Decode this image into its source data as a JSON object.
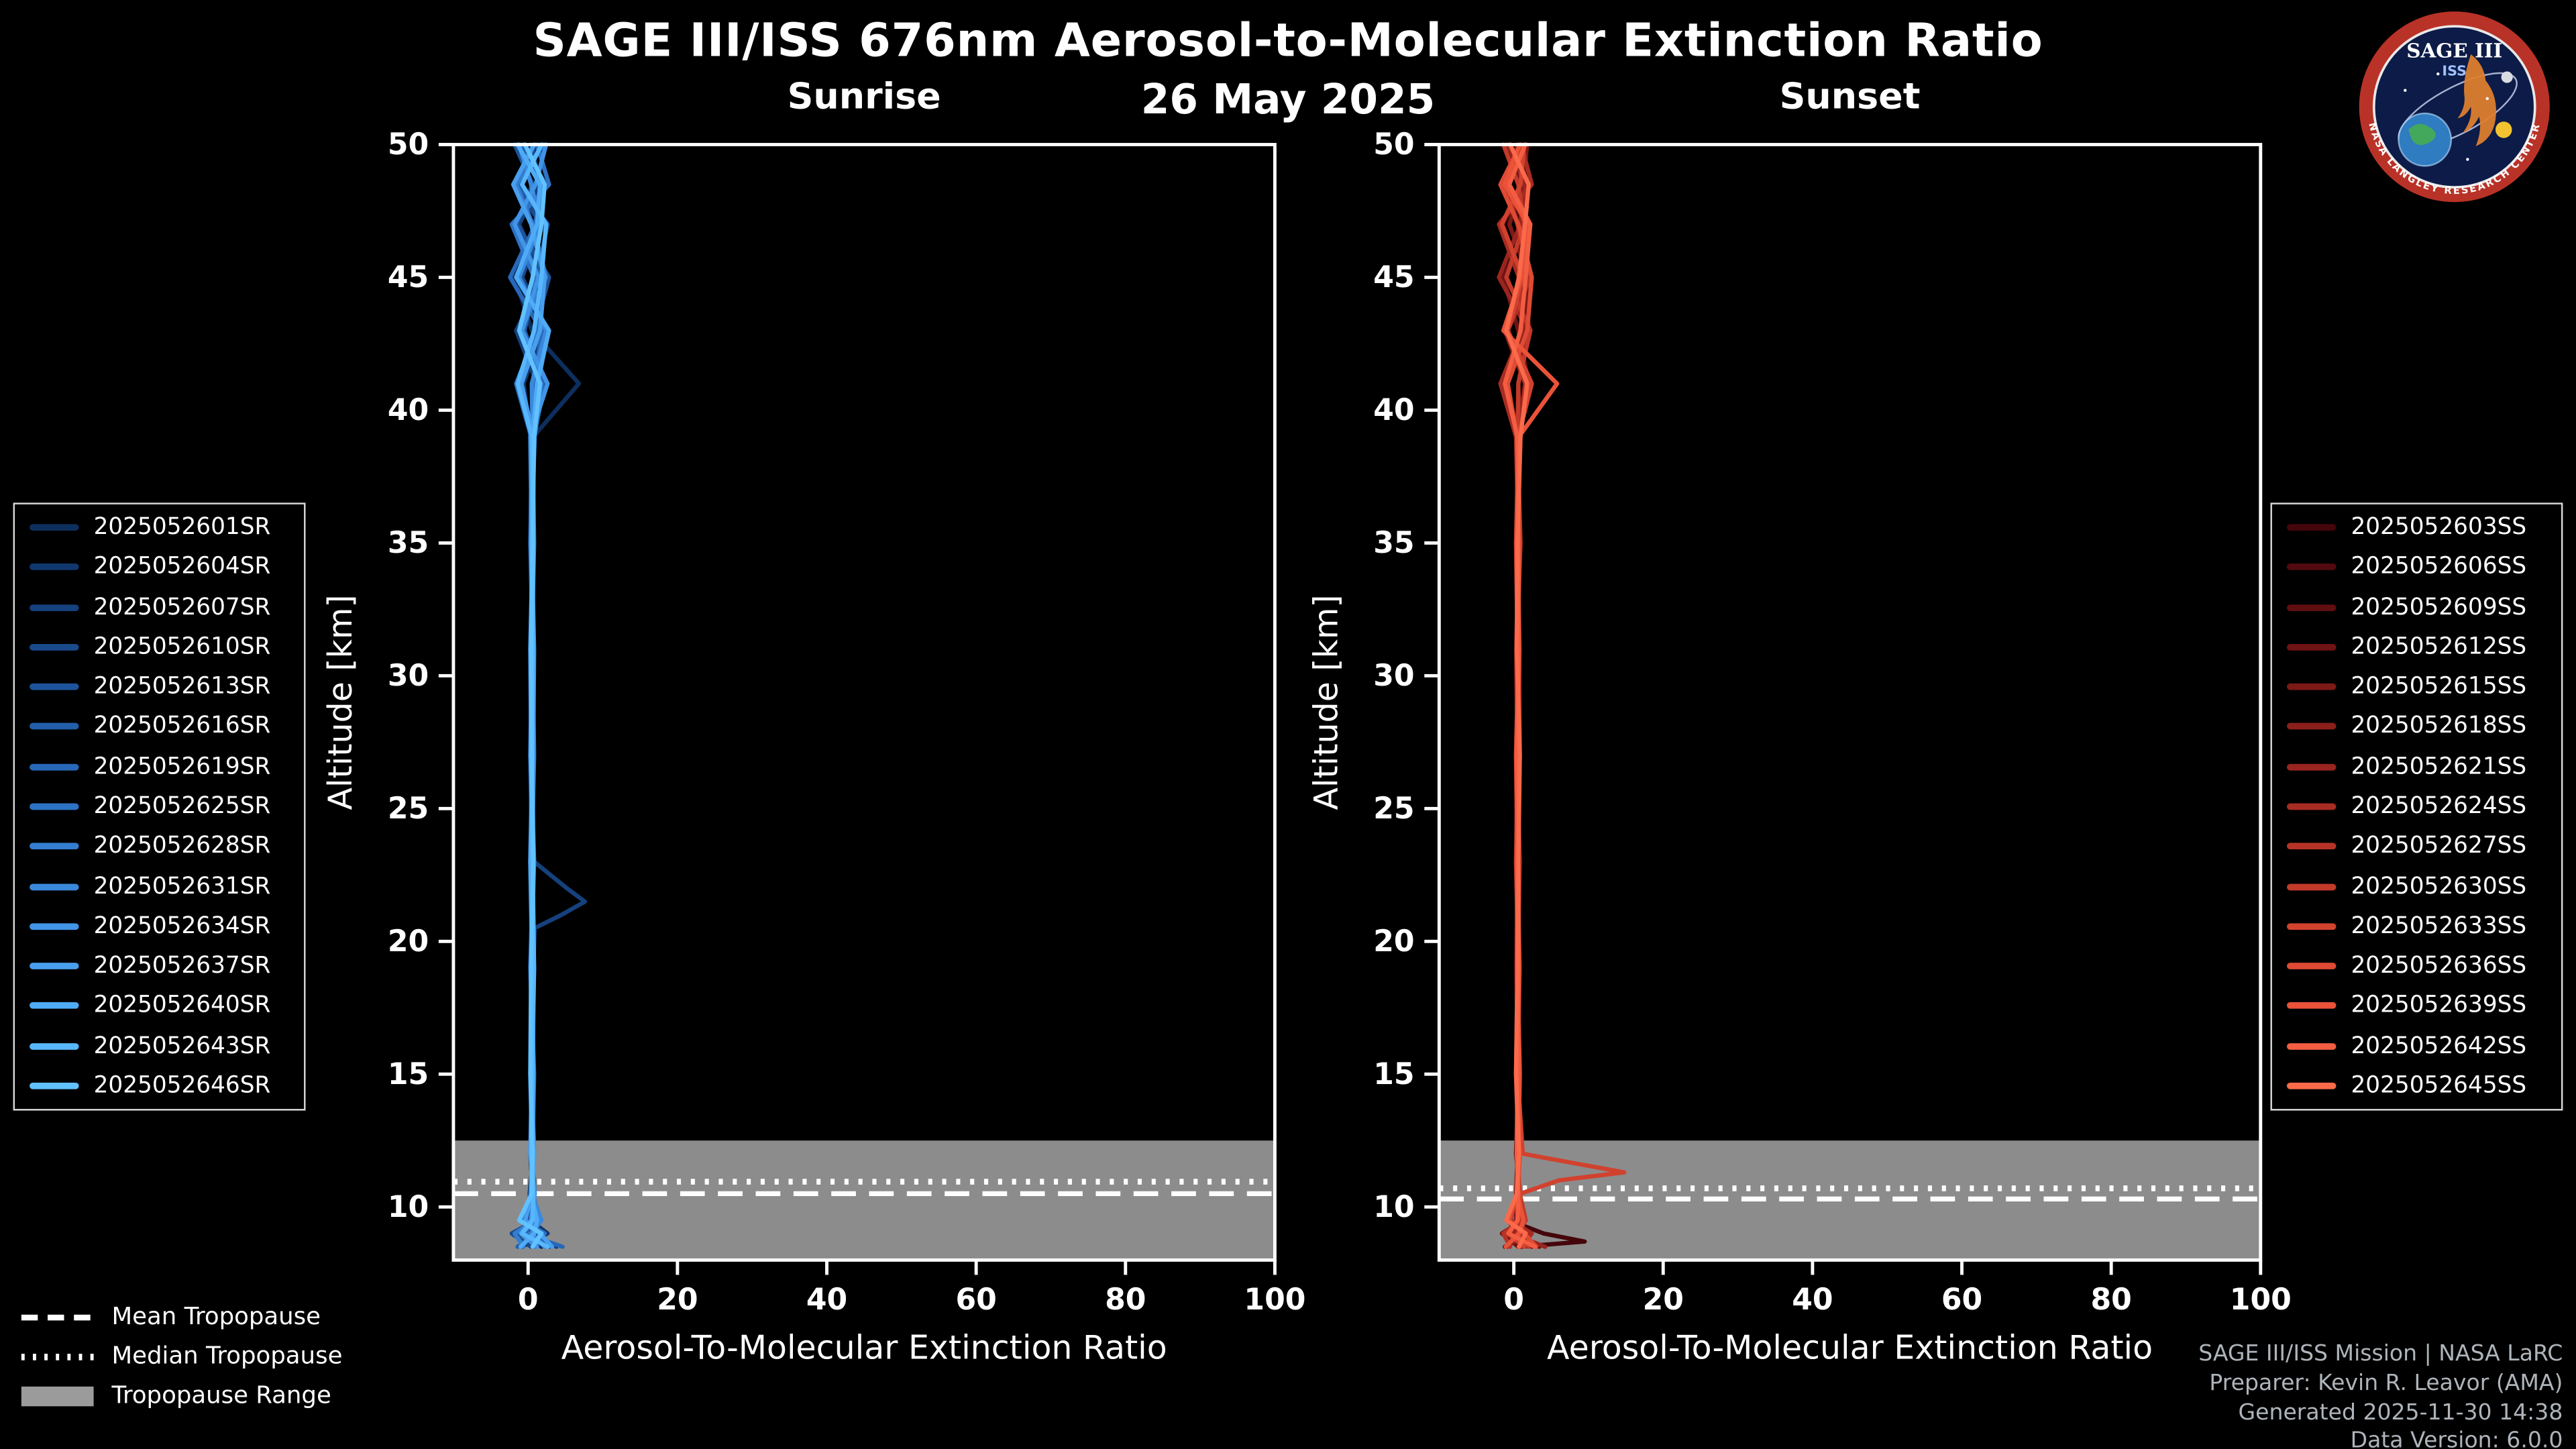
{
  "title": "SAGE III/ISS 676nm Aerosol-to-Molecular Extinction Ratio",
  "date": "26 May 2025",
  "logo": {
    "title": "SAGE III",
    "subtitle": "ISS",
    "ring_text": "NASA LANGLEY RESEARCH CENTER"
  },
  "footer": {
    "lines": [
      "SAGE III/ISS Mission | NASA LaRC",
      "Preparer: Kevin R. Leavor (AMA)",
      "Generated 2025-11-30 14:38",
      "Data Version: 6.0.0"
    ]
  },
  "tropopause_legend": [
    {
      "label": "Mean Tropopause",
      "style": "dashed"
    },
    {
      "label": "Median Tropopause",
      "style": "dotted"
    },
    {
      "label": "Tropopause Range",
      "style": "band"
    }
  ],
  "chart_data": [
    {
      "type": "line",
      "title": "Sunrise",
      "xlabel": "Aerosol-To-Molecular Extinction Ratio",
      "ylabel": "Altitude [km]",
      "xlim": [
        -10,
        100
      ],
      "ylim": [
        8,
        50
      ],
      "xticks": [
        0,
        20,
        40,
        60,
        80,
        100
      ],
      "yticks": [
        10,
        15,
        20,
        25,
        30,
        35,
        40,
        45,
        50
      ],
      "tropopause": {
        "mean": 10.5,
        "median": 10.95,
        "range": [
          8,
          12.5
        ]
      },
      "default_altitudes": [
        8.5,
        9,
        9.5,
        10.5,
        12,
        15,
        19,
        23,
        27,
        31,
        35,
        39,
        41,
        43,
        45,
        47,
        48.5,
        50
      ],
      "series": [
        {
          "label": "2025052601SR",
          "color": "#0d2f5e",
          "values": [
            1.8,
            -1.2,
            0.6,
            0.2,
            0.7,
            0.4,
            0.6,
            0.3,
            0.5,
            0.6,
            0.4,
            0.7,
            6.8,
            0.5,
            -1.8,
            2.2,
            -1.0,
            1.5
          ]
        },
        {
          "label": "2025052604SR",
          "color": "#11386e",
          "values": [
            -0.8,
            2.6,
            0.3,
            0.8,
            0.4,
            0.6,
            0.3,
            0.7,
            0.4,
            0.5,
            0.7,
            0.3,
            -0.6,
            1.9,
            -1.4,
            0.8,
            2.4,
            -0.9
          ]
        },
        {
          "label": "2025052607SR",
          "color": "#15417d",
          "points": [
            [
              8.5,
              3.8
            ],
            [
              9,
              0.6
            ],
            [
              9.5,
              -0.9
            ],
            [
              10.5,
              0.5
            ],
            [
              12,
              0.6
            ],
            [
              15,
              0.4
            ],
            [
              19,
              0.7
            ],
            [
              20.5,
              0.9
            ],
            [
              21,
              4.5
            ],
            [
              21.5,
              7.6
            ],
            [
              22,
              5.2
            ],
            [
              23,
              0.8
            ],
            [
              27,
              0.5
            ],
            [
              31,
              0.6
            ],
            [
              35,
              0.4
            ],
            [
              39,
              0.6
            ],
            [
              41,
              1.2
            ],
            [
              43,
              -1.6
            ],
            [
              45,
              2.0
            ],
            [
              47,
              -1.2
            ],
            [
              48.5,
              1.6
            ],
            [
              50,
              0.4
            ]
          ]
        },
        {
          "label": "2025052610SR",
          "color": "#194a8c",
          "values": [
            0.4,
            -2.2,
            1.0,
            0.6,
            0.3,
            0.7,
            0.5,
            0.3,
            0.6,
            0.4,
            0.6,
            0.5,
            1.4,
            2.6,
            -0.8,
            1.8,
            -2.0,
            2.2
          ]
        },
        {
          "label": "2025052613SR",
          "color": "#1d549b",
          "values": [
            2.9,
            0.8,
            0.2,
            0.9,
            0.5,
            0.3,
            0.6,
            0.5,
            0.3,
            0.7,
            0.5,
            0.6,
            -1.2,
            0.9,
            2.8,
            -1.5,
            0.6,
            -1.8
          ]
        },
        {
          "label": "2025052616SR",
          "color": "#225eaa",
          "values": [
            -1.4,
            1.2,
            0.7,
            0.3,
            0.8,
            0.5,
            0.4,
            0.6,
            0.7,
            0.3,
            0.6,
            0.8,
            2.2,
            -0.5,
            1.2,
            2.6,
            -1.4,
            0.9
          ]
        },
        {
          "label": "2025052619SR",
          "color": "#2768b8",
          "values": [
            4.6,
            -0.6,
            1.4,
            0.7,
            0.4,
            0.6,
            0.8,
            0.4,
            0.5,
            0.6,
            0.3,
            0.5,
            0.9,
            1.8,
            -2.4,
            1.0,
            1.8,
            -0.6
          ]
        },
        {
          "label": "2025052625SR",
          "color": "#2d73c5",
          "values": [
            0.8,
            2.2,
            -0.7,
            0.4,
            0.6,
            0.8,
            0.3,
            0.7,
            0.6,
            0.5,
            0.7,
            0.4,
            -1.6,
            1.2,
            0.8,
            -2.2,
            2.8,
            1.2
          ]
        },
        {
          "label": "2025052628SR",
          "color": "#337ed1",
          "values": [
            -0.6,
            -1.8,
            0.9,
            0.8,
            0.5,
            0.4,
            0.7,
            0.5,
            0.8,
            0.6,
            0.4,
            0.9,
            1.8,
            -1.0,
            2.4,
            0.6,
            -1.6,
            2.0
          ]
        },
        {
          "label": "2025052631SR",
          "color": "#3a89dc",
          "values": [
            2.2,
            0.4,
            1.8,
            0.5,
            0.7,
            0.6,
            0.4,
            0.8,
            0.3,
            0.5,
            0.8,
            0.6,
            0.5,
            2.4,
            -1.2,
            1.6,
            0.4,
            -1.2
          ]
        },
        {
          "label": "2025052634SR",
          "color": "#4194e6",
          "values": [
            1.2,
            -1.0,
            0.4,
            0.9,
            0.3,
            0.5,
            0.6,
            0.4,
            0.7,
            0.8,
            0.5,
            0.3,
            2.6,
            -0.8,
            1.4,
            -1.8,
            1.0,
            2.4
          ]
        },
        {
          "label": "2025052637SR",
          "color": "#489fee",
          "values": [
            3.2,
            1.6,
            -0.4,
            0.6,
            0.8,
            0.4,
            0.5,
            0.6,
            0.4,
            0.3,
            0.6,
            0.7,
            -0.9,
            1.6,
            2.2,
            0.4,
            -2.0,
            0.8
          ]
        },
        {
          "label": "2025052640SR",
          "color": "#50abf6",
          "values": [
            -1.0,
            0.8,
            1.2,
            0.4,
            0.5,
            0.7,
            0.6,
            0.3,
            0.6,
            0.7,
            0.4,
            0.6,
            1.2,
            2.8,
            -1.6,
            1.2,
            1.6,
            -1.4
          ]
        },
        {
          "label": "2025052643SR",
          "color": "#58b7fc",
          "values": [
            2.6,
            -0.8,
            0.6,
            0.7,
            0.4,
            0.5,
            0.8,
            0.6,
            0.4,
            0.6,
            0.7,
            0.5,
            -1.4,
            0.8,
            1.8,
            2.4,
            -0.8,
            1.8
          ]
        },
        {
          "label": "2025052646SR",
          "color": "#61c2ff",
          "values": [
            0.6,
            1.8,
            -1.2,
            0.5,
            0.6,
            0.3,
            0.4,
            0.7,
            0.5,
            0.4,
            0.6,
            0.8,
            1.6,
            -1.2,
            0.6,
            1.8,
            2.2,
            -0.4
          ]
        }
      ]
    },
    {
      "type": "line",
      "title": "Sunset",
      "xlabel": "Aerosol-To-Molecular Extinction Ratio",
      "ylabel": "Altitude [km]",
      "xlim": [
        -10,
        100
      ],
      "ylim": [
        8,
        50
      ],
      "xticks": [
        0,
        20,
        40,
        60,
        80,
        100
      ],
      "yticks": [
        10,
        15,
        20,
        25,
        30,
        35,
        40,
        45,
        50
      ],
      "tropopause": {
        "mean": 10.3,
        "median": 10.7,
        "range": [
          8,
          12.5
        ]
      },
      "default_altitudes": [
        8.5,
        9,
        9.5,
        10.5,
        12,
        15,
        19,
        23,
        27,
        31,
        35,
        39,
        41,
        43,
        45,
        47,
        48.5,
        50
      ],
      "series": [
        {
          "label": "2025052603SS",
          "color": "#45060b",
          "points": [
            [
              8.5,
              0.8
            ],
            [
              8.7,
              9.5
            ],
            [
              9,
              4.0
            ],
            [
              9.5,
              -0.6
            ],
            [
              10.5,
              0.5
            ],
            [
              12,
              0.6
            ],
            [
              15,
              0.4
            ],
            [
              19,
              0.7
            ],
            [
              23,
              0.5
            ],
            [
              27,
              0.3
            ],
            [
              31,
              0.6
            ],
            [
              35,
              0.5
            ],
            [
              39,
              0.7
            ],
            [
              41,
              -1.2
            ],
            [
              43,
              1.6
            ],
            [
              45,
              0.8
            ],
            [
              47,
              -1.4
            ],
            [
              48.5,
              1.2
            ],
            [
              50,
              0.4
            ]
          ]
        },
        {
          "label": "2025052606SS",
          "color": "#530a0e",
          "values": [
            -1.2,
            2.0,
            0.5,
            0.7,
            0.4,
            0.6,
            0.3,
            0.5,
            0.7,
            0.4,
            0.6,
            0.4,
            1.8,
            -0.9,
            1.2,
            -1.6,
            2.0,
            0.6
          ]
        },
        {
          "label": "2025052609SS",
          "color": "#610e11",
          "values": [
            3.4,
            0.6,
            -0.8,
            0.4,
            0.7,
            0.5,
            0.6,
            0.4,
            0.3,
            0.6,
            0.5,
            0.7,
            -1.0,
            2.2,
            0.6,
            1.4,
            -1.8,
            1.0
          ]
        },
        {
          "label": "2025052612SS",
          "color": "#6f1314",
          "values": [
            0.6,
            -1.6,
            1.2,
            0.8,
            0.3,
            0.6,
            0.5,
            0.7,
            0.4,
            0.5,
            0.8,
            0.4,
            2.0,
            0.6,
            -1.4,
            1.8,
            0.8,
            -1.0
          ]
        },
        {
          "label": "2025052615SS",
          "color": "#7d1917",
          "values": [
            2.4,
            0.9,
            0.3,
            0.5,
            0.8,
            0.4,
            0.7,
            0.3,
            0.6,
            0.8,
            0.4,
            0.6,
            -1.3,
            1.4,
            2.0,
            -0.6,
            1.2,
            1.8
          ]
        },
        {
          "label": "2025052618SS",
          "color": "#8b1f1a",
          "values": [
            -0.9,
            1.5,
            0.8,
            0.3,
            0.5,
            0.7,
            0.4,
            0.6,
            0.5,
            0.3,
            0.7,
            0.5,
            1.5,
            -1.2,
            0.8,
            2.2,
            -1.0,
            0.5
          ]
        },
        {
          "label": "2025052621SS",
          "color": "#99251e",
          "values": [
            4.2,
            -0.4,
            1.6,
            0.6,
            0.4,
            0.5,
            0.8,
            0.4,
            0.7,
            0.6,
            0.3,
            0.8,
            0.6,
            1.9,
            -2.0,
            0.9,
            1.5,
            -0.8
          ]
        },
        {
          "label": "2025052624SS",
          "color": "#a72c22",
          "values": [
            0.9,
            2.4,
            -0.5,
            0.7,
            0.6,
            0.3,
            0.5,
            0.8,
            0.4,
            0.5,
            0.6,
            0.3,
            -1.8,
            1.1,
            0.7,
            -2.0,
            2.4,
            1.0
          ]
        },
        {
          "label": "2025052627SS",
          "color": "#b53326",
          "values": [
            -0.5,
            -1.4,
            1.0,
            0.5,
            0.7,
            0.6,
            0.4,
            0.5,
            0.8,
            0.7,
            0.5,
            0.9,
            1.6,
            -0.8,
            2.2,
            0.5,
            -1.2,
            1.6
          ]
        },
        {
          "label": "2025052630SS",
          "color": "#c33a2a",
          "values": [
            2.0,
            0.5,
            1.6,
            0.8,
            0.4,
            0.7,
            0.6,
            0.3,
            0.5,
            0.4,
            0.9,
            0.5,
            0.6,
            2.2,
            -1.0,
            1.4,
            0.6,
            -1.4
          ]
        },
        {
          "label": "2025052633SS",
          "color": "#d1422e",
          "points": [
            [
              8.5,
              1.4
            ],
            [
              9,
              -0.8
            ],
            [
              9.5,
              0.6
            ],
            [
              10.5,
              0.9
            ],
            [
              11,
              6.0
            ],
            [
              11.3,
              14.8
            ],
            [
              11.6,
              9.0
            ],
            [
              12,
              1.2
            ],
            [
              15,
              0.5
            ],
            [
              19,
              0.6
            ],
            [
              23,
              0.4
            ],
            [
              27,
              0.7
            ],
            [
              31,
              0.5
            ],
            [
              35,
              0.3
            ],
            [
              39,
              0.6
            ],
            [
              41,
              2.4
            ],
            [
              43,
              -0.8
            ],
            [
              45,
              1.2
            ],
            [
              47,
              -1.6
            ],
            [
              48.5,
              0.9
            ],
            [
              50,
              1.4
            ]
          ]
        },
        {
          "label": "2025052636SS",
          "color": "#de4a33",
          "values": [
            3.0,
            1.4,
            -0.6,
            0.5,
            0.8,
            0.4,
            0.6,
            0.5,
            0.3,
            0.6,
            0.7,
            0.4,
            -0.8,
            1.8,
            2.4,
            0.6,
            -1.8,
            0.9
          ]
        },
        {
          "label": "2025052639SS",
          "color": "#ea5339",
          "values": [
            -1.1,
            0.7,
            1.3,
            0.4,
            0.6,
            0.8,
            0.5,
            0.4,
            0.7,
            0.5,
            0.4,
            0.7,
            5.8,
            -1.4,
            1.0,
            1.8,
            -1.2,
            0.8
          ]
        },
        {
          "label": "2025052642SS",
          "color": "#f35d41",
          "values": [
            2.8,
            -0.7,
            0.5,
            0.6,
            0.4,
            0.5,
            0.7,
            0.6,
            0.4,
            0.7,
            0.6,
            0.5,
            -1.2,
            0.9,
            1.6,
            2.2,
            -0.6,
            1.5
          ]
        },
        {
          "label": "2025052645SS",
          "color": "#fb6a4a",
          "values": [
            0.7,
            1.6,
            -1.0,
            0.4,
            0.7,
            0.3,
            0.5,
            0.6,
            0.8,
            0.4,
            0.5,
            0.9,
            1.8,
            -1.0,
            0.7,
            1.5,
            2.0,
            -0.5
          ]
        }
      ]
    }
  ]
}
